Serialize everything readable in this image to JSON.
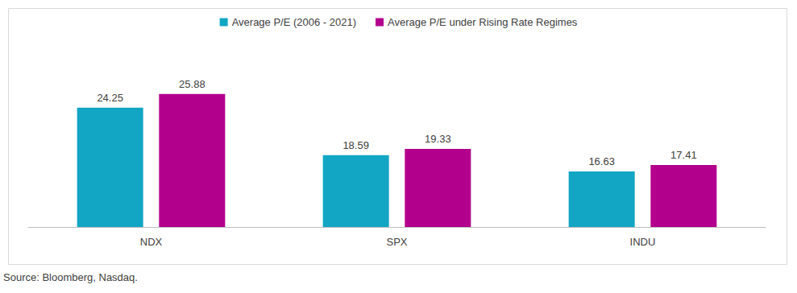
{
  "chart_data": {
    "type": "bar",
    "categories": [
      "NDX",
      "SPX",
      "INDU"
    ],
    "series": [
      {
        "name": "Average P/E (2006 - 2021)",
        "color": "#12a6c4",
        "values": [
          24.25,
          18.59,
          16.63
        ]
      },
      {
        "name": "Average P/E under Rising Rate Regimes",
        "color": "#b3008c",
        "values": [
          25.88,
          19.33,
          17.41
        ]
      }
    ],
    "ylim": [
      10,
      30
    ],
    "yticks": [
      10,
      30
    ],
    "grid": false,
    "legend": "top",
    "data_labels": true,
    "tick_labels": "x",
    "annotations": [
      "Source: Bloomberg, Nasdaq."
    ]
  }
}
